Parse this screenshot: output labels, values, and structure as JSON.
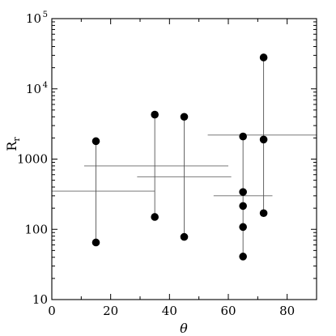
{
  "chart_data": {
    "type": "scatter",
    "xlabel": "θ",
    "ylabel": "R",
    "ylabel_sub": "r",
    "xlim": [
      0,
      90
    ],
    "ylim": [
      10,
      100000
    ],
    "yscale": "log",
    "x_ticks": [
      {
        "value": 0,
        "label": "0"
      },
      {
        "value": 20,
        "label": "20"
      },
      {
        "value": 40,
        "label": "40"
      },
      {
        "value": 60,
        "label": "60"
      },
      {
        "value": 80,
        "label": "80"
      }
    ],
    "y_ticks": [
      {
        "value": 10,
        "label": "10",
        "sup": ""
      },
      {
        "value": 100,
        "label": "100",
        "sup": ""
      },
      {
        "value": 1000,
        "label": "1000",
        "sup": ""
      },
      {
        "value": 10000,
        "label": "10",
        "sup": "4"
      },
      {
        "value": 100000,
        "label": "10",
        "sup": "5"
      }
    ],
    "points": [
      {
        "x": 15,
        "y": 1800
      },
      {
        "x": 15,
        "y": 65
      },
      {
        "x": 35,
        "y": 4300
      },
      {
        "x": 35,
        "y": 150
      },
      {
        "x": 45,
        "y": 4000
      },
      {
        "x": 45,
        "y": 78
      },
      {
        "x": 65,
        "y": 2100
      },
      {
        "x": 65,
        "y": 340
      },
      {
        "x": 65,
        "y": 215
      },
      {
        "x": 65,
        "y": 108
      },
      {
        "x": 65,
        "y": 41
      },
      {
        "x": 72,
        "y": 28000
      },
      {
        "x": 72,
        "y": 1900
      },
      {
        "x": 72,
        "y": 170
      }
    ],
    "vertical_ranges": [
      {
        "x": 15,
        "y1": 65,
        "y2": 1800
      },
      {
        "x": 35,
        "y1": 150,
        "y2": 4300
      },
      {
        "x": 45,
        "y1": 78,
        "y2": 4000
      },
      {
        "x": 65,
        "y1": 41,
        "y2": 2100
      },
      {
        "x": 72,
        "y1": 170,
        "y2": 28000
      }
    ],
    "horizontal_ranges": [
      {
        "x1": 0,
        "x2": 35,
        "y": 350
      },
      {
        "x1": 11,
        "x2": 60,
        "y": 800
      },
      {
        "x1": 29,
        "x2": 61,
        "y": 560
      },
      {
        "x1": 53,
        "x2": 90,
        "y": 2200
      },
      {
        "x1": 55,
        "x2": 75,
        "y": 300
      }
    ],
    "grid": false,
    "legend": "none"
  }
}
